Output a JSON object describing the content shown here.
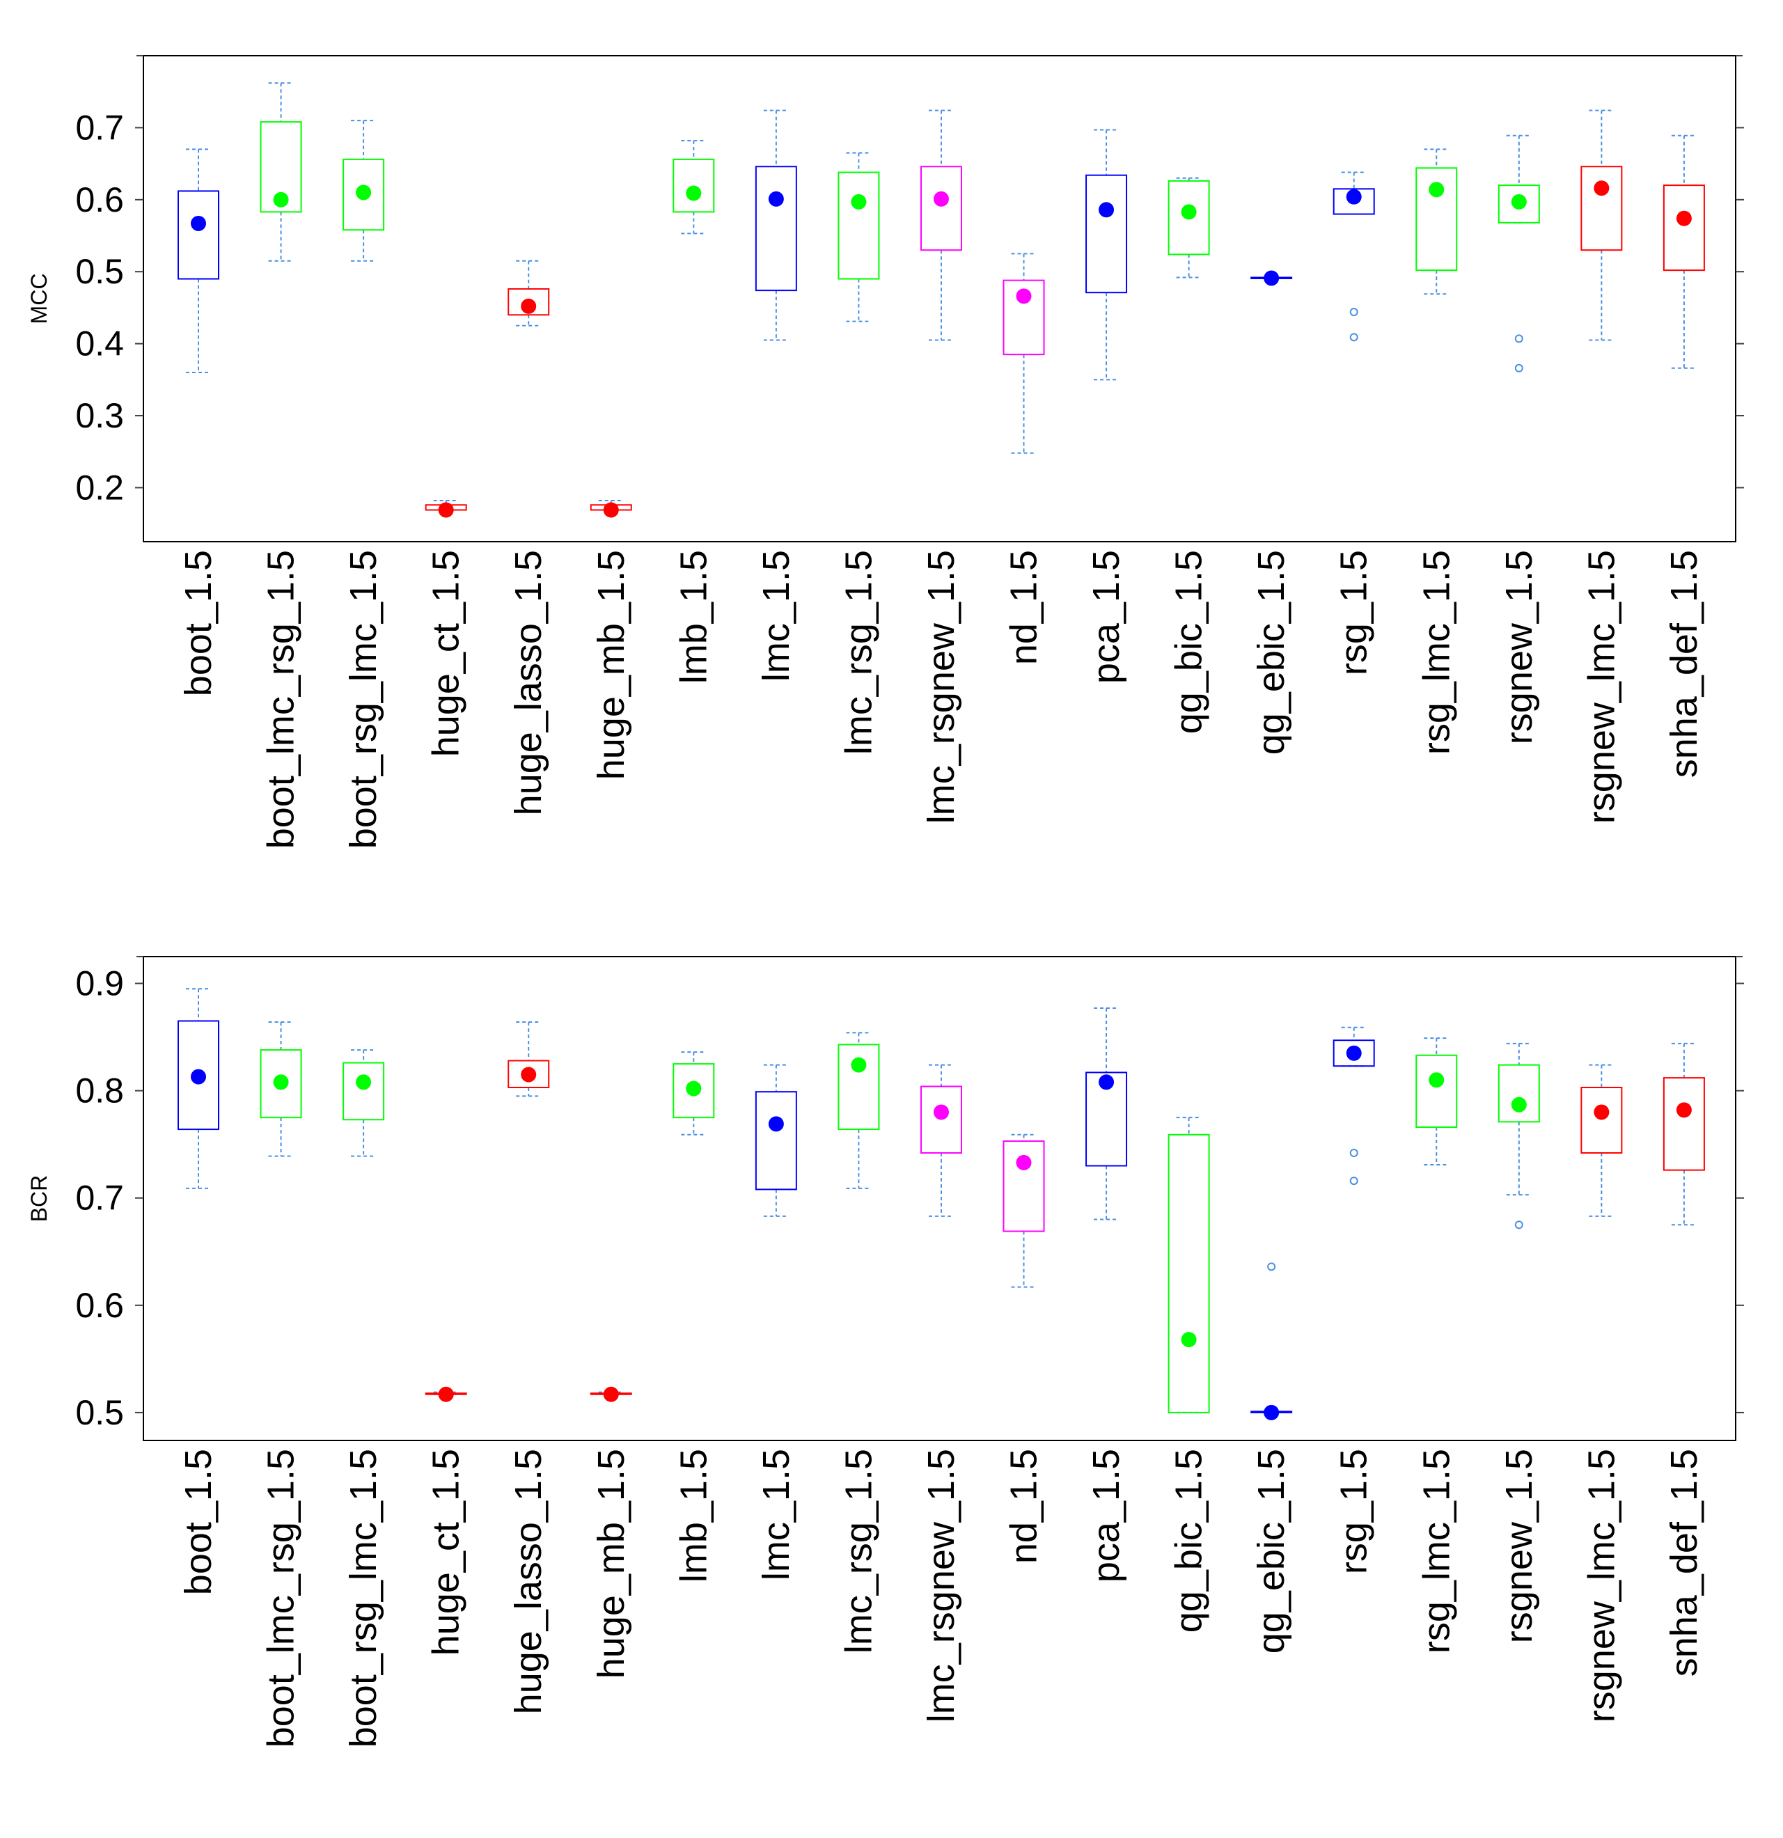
{
  "chart_data": [
    {
      "type": "boxplot",
      "ylabel": "MCC",
      "ylim": [
        0.125,
        0.8
      ],
      "yticks": [
        0.2,
        0.3,
        0.4,
        0.5,
        0.6,
        0.7
      ],
      "ytick_labels": [
        "0.2",
        "0.3",
        "0.4",
        "0.5",
        "0.6",
        "0.7"
      ],
      "grid": false,
      "categories": [
        "boot_1.5",
        "boot_lmc_rsg_1.5",
        "boot_rsg_lmc_1.5",
        "huge_ct_1.5",
        "huge_lasso_1.5",
        "huge_mb_1.5",
        "lmb_1.5",
        "lmc_1.5",
        "lmc_rsg_1.5",
        "lmc_rsgnew_1.5",
        "nd_1.5",
        "pca_1.5",
        "qg_bic_1.5",
        "qg_ebic_1.5",
        "rsg_1.5",
        "rsg_lmc_1.5",
        "rsgnew_1.5",
        "rsgnew_lmc_1.5",
        "snha_def_1.5"
      ],
      "boxes": [
        {
          "whisker_low": 0.36,
          "q1": 0.49,
          "q3": 0.612,
          "whisker_high": 0.67,
          "marker": 0.567,
          "outliers": [],
          "color": "#0000ff"
        },
        {
          "whisker_low": 0.515,
          "q1": 0.583,
          "q3": 0.708,
          "whisker_high": 0.762,
          "marker": 0.6,
          "outliers": [],
          "color": "#00ff00"
        },
        {
          "whisker_low": 0.515,
          "q1": 0.558,
          "q3": 0.656,
          "whisker_high": 0.71,
          "marker": 0.61,
          "outliers": [],
          "color": "#00ff00"
        },
        {
          "whisker_low": 0.169,
          "q1": 0.169,
          "q3": 0.176,
          "whisker_high": 0.182,
          "marker": 0.169,
          "outliers": [],
          "color": "#ff0000"
        },
        {
          "whisker_low": 0.425,
          "q1": 0.44,
          "q3": 0.476,
          "whisker_high": 0.515,
          "marker": 0.452,
          "outliers": [],
          "color": "#ff0000"
        },
        {
          "whisker_low": 0.169,
          "q1": 0.169,
          "q3": 0.176,
          "whisker_high": 0.182,
          "marker": 0.169,
          "outliers": [],
          "color": "#ff0000"
        },
        {
          "whisker_low": 0.553,
          "q1": 0.583,
          "q3": 0.656,
          "whisker_high": 0.682,
          "marker": 0.609,
          "outliers": [],
          "color": "#00ff00"
        },
        {
          "whisker_low": 0.405,
          "q1": 0.474,
          "q3": 0.646,
          "whisker_high": 0.724,
          "marker": 0.601,
          "outliers": [],
          "color": "#0000ff"
        },
        {
          "whisker_low": 0.431,
          "q1": 0.49,
          "q3": 0.638,
          "whisker_high": 0.665,
          "marker": 0.597,
          "outliers": [],
          "color": "#00ff00"
        },
        {
          "whisker_low": 0.405,
          "q1": 0.53,
          "q3": 0.646,
          "whisker_high": 0.724,
          "marker": 0.601,
          "outliers": [],
          "color": "#ff00ff"
        },
        {
          "whisker_low": 0.248,
          "q1": 0.385,
          "q3": 0.488,
          "whisker_high": 0.525,
          "marker": 0.466,
          "outliers": [],
          "color": "#ff00ff"
        },
        {
          "whisker_low": 0.35,
          "q1": 0.471,
          "q3": 0.634,
          "whisker_high": 0.697,
          "marker": 0.586,
          "outliers": [],
          "color": "#0000ff"
        },
        {
          "whisker_low": 0.492,
          "q1": 0.524,
          "q3": 0.626,
          "whisker_high": 0.63,
          "marker": 0.583,
          "outliers": [],
          "color": "#00ff00"
        },
        {
          "whisker_low": 0.491,
          "q1": 0.491,
          "q3": 0.492,
          "whisker_high": 0.492,
          "marker": 0.491,
          "outliers": [],
          "color": "#0000ff"
        },
        {
          "whisker_low": 0.58,
          "q1": 0.58,
          "q3": 0.615,
          "whisker_high": 0.638,
          "marker": 0.604,
          "outliers": [
            0.444,
            0.409
          ],
          "color": "#0000ff"
        },
        {
          "whisker_low": 0.469,
          "q1": 0.502,
          "q3": 0.644,
          "whisker_high": 0.67,
          "marker": 0.614,
          "outliers": [],
          "color": "#00ff00"
        },
        {
          "whisker_low": 0.568,
          "q1": 0.568,
          "q3": 0.62,
          "whisker_high": 0.689,
          "marker": 0.597,
          "outliers": [
            0.407,
            0.366
          ],
          "color": "#00ff00"
        },
        {
          "whisker_low": 0.405,
          "q1": 0.53,
          "q3": 0.646,
          "whisker_high": 0.724,
          "marker": 0.616,
          "outliers": [],
          "color": "#ff0000"
        },
        {
          "whisker_low": 0.366,
          "q1": 0.502,
          "q3": 0.62,
          "whisker_high": 0.689,
          "marker": 0.574,
          "outliers": [],
          "color": "#ff0000"
        }
      ]
    },
    {
      "type": "boxplot",
      "ylabel": "BCR",
      "ylim": [
        0.474,
        0.925
      ],
      "yticks": [
        0.5,
        0.6,
        0.7,
        0.8,
        0.9
      ],
      "ytick_labels": [
        "0.5",
        "0.6",
        "0.7",
        "0.8",
        "0.9"
      ],
      "grid": false,
      "categories": [
        "boot_1.5",
        "boot_lmc_rsg_1.5",
        "boot_rsg_lmc_1.5",
        "huge_ct_1.5",
        "huge_lasso_1.5",
        "huge_mb_1.5",
        "lmb_1.5",
        "lmc_1.5",
        "lmc_rsg_1.5",
        "lmc_rsgnew_1.5",
        "nd_1.5",
        "pca_1.5",
        "qg_bic_1.5",
        "qg_ebic_1.5",
        "rsg_1.5",
        "rsg_lmc_1.5",
        "rsgnew_1.5",
        "rsgnew_lmc_1.5",
        "snha_def_1.5"
      ],
      "boxes": [
        {
          "whisker_low": 0.709,
          "q1": 0.764,
          "q3": 0.865,
          "whisker_high": 0.895,
          "marker": 0.813,
          "outliers": [],
          "color": "#0000ff"
        },
        {
          "whisker_low": 0.739,
          "q1": 0.775,
          "q3": 0.838,
          "whisker_high": 0.864,
          "marker": 0.808,
          "outliers": [],
          "color": "#00ff00"
        },
        {
          "whisker_low": 0.739,
          "q1": 0.773,
          "q3": 0.826,
          "whisker_high": 0.838,
          "marker": 0.808,
          "outliers": [],
          "color": "#00ff00"
        },
        {
          "whisker_low": 0.517,
          "q1": 0.517,
          "q3": 0.518,
          "whisker_high": 0.519,
          "marker": 0.517,
          "outliers": [],
          "color": "#ff0000"
        },
        {
          "whisker_low": 0.795,
          "q1": 0.803,
          "q3": 0.828,
          "whisker_high": 0.864,
          "marker": 0.815,
          "outliers": [],
          "color": "#ff0000"
        },
        {
          "whisker_low": 0.517,
          "q1": 0.517,
          "q3": 0.518,
          "whisker_high": 0.519,
          "marker": 0.517,
          "outliers": [],
          "color": "#ff0000"
        },
        {
          "whisker_low": 0.759,
          "q1": 0.775,
          "q3": 0.825,
          "whisker_high": 0.836,
          "marker": 0.802,
          "outliers": [],
          "color": "#00ff00"
        },
        {
          "whisker_low": 0.683,
          "q1": 0.708,
          "q3": 0.799,
          "whisker_high": 0.824,
          "marker": 0.769,
          "outliers": [],
          "color": "#0000ff"
        },
        {
          "whisker_low": 0.709,
          "q1": 0.764,
          "q3": 0.843,
          "whisker_high": 0.854,
          "marker": 0.824,
          "outliers": [],
          "color": "#00ff00"
        },
        {
          "whisker_low": 0.683,
          "q1": 0.742,
          "q3": 0.804,
          "whisker_high": 0.824,
          "marker": 0.78,
          "outliers": [],
          "color": "#ff00ff"
        },
        {
          "whisker_low": 0.617,
          "q1": 0.669,
          "q3": 0.753,
          "whisker_high": 0.759,
          "marker": 0.733,
          "outliers": [],
          "color": "#ff00ff"
        },
        {
          "whisker_low": 0.68,
          "q1": 0.73,
          "q3": 0.817,
          "whisker_high": 0.877,
          "marker": 0.808,
          "outliers": [],
          "color": "#0000ff"
        },
        {
          "whisker_low": 0.5,
          "q1": 0.5,
          "q3": 0.759,
          "whisker_high": 0.775,
          "marker": 0.568,
          "outliers": [],
          "color": "#00ff00"
        },
        {
          "whisker_low": 0.5,
          "q1": 0.5,
          "q3": 0.501,
          "whisker_high": 0.501,
          "marker": 0.5,
          "outliers": [
            0.636
          ],
          "color": "#0000ff"
        },
        {
          "whisker_low": 0.823,
          "q1": 0.823,
          "q3": 0.847,
          "whisker_high": 0.859,
          "marker": 0.835,
          "outliers": [
            0.742,
            0.716
          ],
          "color": "#0000ff"
        },
        {
          "whisker_low": 0.731,
          "q1": 0.766,
          "q3": 0.833,
          "whisker_high": 0.849,
          "marker": 0.81,
          "outliers": [],
          "color": "#00ff00"
        },
        {
          "whisker_low": 0.703,
          "q1": 0.771,
          "q3": 0.824,
          "whisker_high": 0.844,
          "marker": 0.787,
          "outliers": [
            0.675
          ],
          "color": "#00ff00"
        },
        {
          "whisker_low": 0.683,
          "q1": 0.742,
          "q3": 0.803,
          "whisker_high": 0.824,
          "marker": 0.78,
          "outliers": [],
          "color": "#ff0000"
        },
        {
          "whisker_low": 0.675,
          "q1": 0.726,
          "q3": 0.812,
          "whisker_high": 0.844,
          "marker": 0.782,
          "outliers": [],
          "color": "#ff0000"
        }
      ]
    }
  ],
  "colors": {
    "whisker": "#4a90e2",
    "frame": "#000000",
    "tick_mark": "#404040"
  }
}
